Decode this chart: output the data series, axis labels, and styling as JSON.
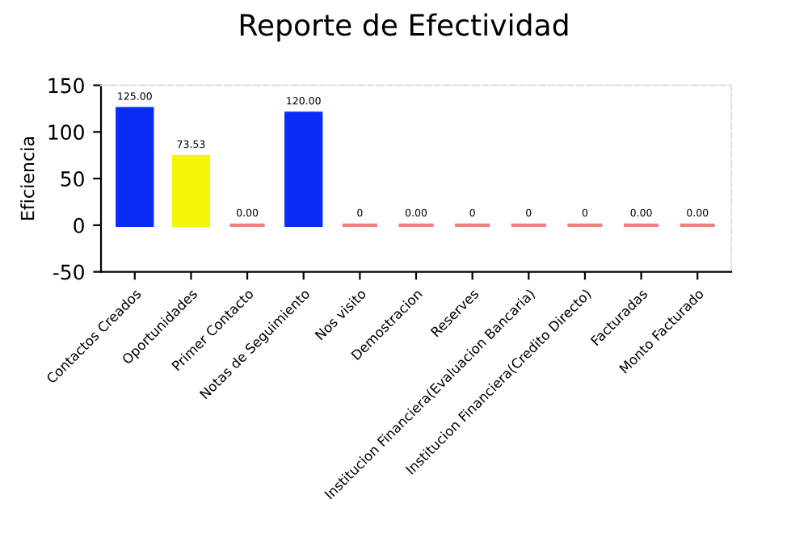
{
  "chart_data": {
    "type": "bar",
    "title": "Reporte de Efectividad",
    "ylabel": "Eficiencia",
    "categories": [
      "Contactos Creados",
      "Oportunidades",
      "Primer Contacto",
      "Notas de Seguimiento",
      "Nos visito",
      "Demostracion",
      "Reserves",
      "Institucion Financiera(Evaluacion Bancaria)",
      "Institucion Financiera(Credito Directo)",
      "Facturadas",
      "Monto Facturado"
    ],
    "values": [
      125,
      73.53,
      0,
      120,
      0,
      0,
      0,
      0,
      0,
      0,
      0
    ],
    "value_labels": [
      "125.00",
      "73.53",
      "0.00",
      "120.00",
      "0",
      "0.00",
      "0",
      "0",
      "0",
      "0.00",
      "0.00"
    ],
    "colors": [
      "#0a2cf5",
      "#f5f50a",
      "#f08080",
      "#0a2cf5",
      "#f08080",
      "#f08080",
      "#f08080",
      "#f08080",
      "#f08080",
      "#f08080",
      "#f08080"
    ],
    "ylim": [
      -50,
      150
    ],
    "yticks": [
      -50,
      0,
      50,
      100,
      150
    ],
    "grid": false,
    "legend": false
  }
}
